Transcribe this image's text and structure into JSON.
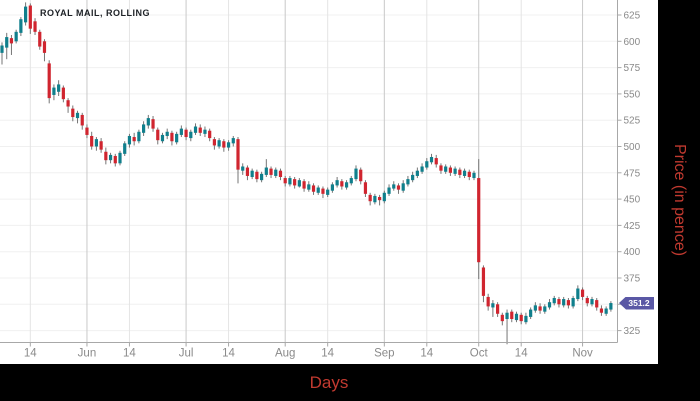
{
  "chart": {
    "title": "ROYAL MAIL, ROLLING",
    "x_axis_title": "Days",
    "y_axis_title": "Price (in pence)",
    "price_badge": "351.2"
  },
  "colors": {
    "up_candle": "#107f8c",
    "down_candle": "#d0252f",
    "wick": "#757575",
    "grid_horizontal": "#f0f0f0",
    "grid_month": "#c9c9c9",
    "grid_midmonth": "#e4e4e4",
    "axis_line": "#a8a8a8",
    "tick_label": "#8a8a8a",
    "axis_title_red": "#c23a30",
    "badge_bg": "#5a58a5",
    "badge_text": "#ffffff"
  },
  "chart_data": {
    "type": "candlestick",
    "title": "ROYAL MAIL, ROLLING",
    "xlabel": "Days",
    "ylabel": "Price (in pence)",
    "ylim": [
      310,
      645
    ],
    "y_ticks": [
      625,
      600,
      575,
      550,
      525,
      500,
      475,
      450,
      425,
      400,
      375,
      350,
      325
    ],
    "x_ticks": [
      {
        "label": "14",
        "i": 6,
        "major": false
      },
      {
        "label": "Jun",
        "i": 18,
        "major": true
      },
      {
        "label": "14",
        "i": 27,
        "major": false
      },
      {
        "label": "Jul",
        "i": 39,
        "major": true
      },
      {
        "label": "14",
        "i": 48,
        "major": false
      },
      {
        "label": "Aug",
        "i": 60,
        "major": true
      },
      {
        "label": "14",
        "i": 69,
        "major": false
      },
      {
        "label": "Sep",
        "i": 81,
        "major": true
      },
      {
        "label": "14",
        "i": 90,
        "major": false
      },
      {
        "label": "Oct",
        "i": 101,
        "major": true
      },
      {
        "label": "14",
        "i": 110,
        "major": false
      },
      {
        "label": "Nov",
        "i": 123,
        "major": true
      }
    ],
    "last_price": 351.2,
    "candles": [
      [
        589,
        599,
        578,
        596
      ],
      [
        594,
        608,
        583,
        604
      ],
      [
        603,
        606,
        587,
        598
      ],
      [
        600,
        611,
        598,
        609
      ],
      [
        608,
        623,
        605,
        621
      ],
      [
        618,
        637,
        615,
        633
      ],
      [
        634,
        636,
        607,
        612
      ],
      [
        619,
        622,
        606,
        609
      ],
      [
        609,
        611,
        592,
        595
      ],
      [
        600,
        602,
        581,
        589
      ],
      [
        579,
        582,
        541,
        546
      ],
      [
        549,
        559,
        544,
        556
      ],
      [
        552,
        563,
        548,
        559
      ],
      [
        556,
        558,
        542,
        545
      ],
      [
        544,
        546,
        532,
        538
      ],
      [
        536,
        539,
        524,
        528
      ],
      [
        527,
        534,
        522,
        532
      ],
      [
        530,
        532,
        516,
        520
      ],
      [
        518,
        521,
        508,
        511
      ],
      [
        510,
        514,
        497,
        500
      ],
      [
        500,
        509,
        496,
        507
      ],
      [
        505,
        508,
        494,
        497
      ],
      [
        495,
        499,
        483,
        487
      ],
      [
        487,
        494,
        484,
        492
      ],
      [
        491,
        493,
        481,
        484
      ],
      [
        484,
        496,
        482,
        494
      ],
      [
        493,
        505,
        491,
        503
      ],
      [
        502,
        512,
        499,
        510
      ],
      [
        509,
        513,
        501,
        505
      ],
      [
        505,
        516,
        503,
        514
      ],
      [
        513,
        524,
        510,
        521
      ],
      [
        520,
        530,
        517,
        527
      ],
      [
        526,
        529,
        514,
        517
      ],
      [
        516,
        518,
        502,
        506
      ],
      [
        505,
        513,
        503,
        511
      ],
      [
        510,
        517,
        507,
        514
      ],
      [
        513,
        515,
        501,
        505
      ],
      [
        504,
        514,
        502,
        512
      ],
      [
        511,
        520,
        509,
        517
      ],
      [
        516,
        518,
        506,
        509
      ],
      [
        508,
        516,
        505,
        514
      ],
      [
        513,
        522,
        511,
        519
      ],
      [
        518,
        521,
        510,
        513
      ],
      [
        512,
        519,
        509,
        516
      ],
      [
        515,
        517,
        505,
        508
      ],
      [
        507,
        509,
        497,
        501
      ],
      [
        500,
        508,
        498,
        506
      ],
      [
        505,
        507,
        495,
        499
      ],
      [
        499,
        506,
        496,
        504
      ],
      [
        503,
        510,
        500,
        508
      ],
      [
        507,
        509,
        465,
        478
      ],
      [
        477,
        484,
        473,
        481
      ],
      [
        480,
        482,
        468,
        472
      ],
      [
        471,
        479,
        469,
        477
      ],
      [
        476,
        478,
        466,
        469
      ],
      [
        468,
        476,
        466,
        474
      ],
      [
        473,
        488,
        471,
        480
      ],
      [
        479,
        481,
        470,
        473
      ],
      [
        472,
        480,
        470,
        478
      ],
      [
        477,
        479,
        468,
        471
      ],
      [
        470,
        472,
        462,
        465
      ],
      [
        464,
        472,
        462,
        470
      ],
      [
        469,
        471,
        460,
        463
      ],
      [
        462,
        470,
        461,
        468
      ],
      [
        467,
        469,
        457,
        460
      ],
      [
        459,
        467,
        457,
        464
      ],
      [
        463,
        465,
        454,
        457
      ],
      [
        456,
        463,
        454,
        461
      ],
      [
        460,
        462,
        451,
        455
      ],
      [
        454,
        461,
        452,
        459
      ],
      [
        458,
        466,
        456,
        464
      ],
      [
        463,
        471,
        461,
        468
      ],
      [
        467,
        469,
        459,
        462
      ],
      [
        461,
        468,
        459,
        466
      ],
      [
        465,
        472,
        463,
        470
      ],
      [
        469,
        482,
        467,
        479
      ],
      [
        478,
        480,
        464,
        467
      ],
      [
        466,
        468,
        452,
        455
      ],
      [
        454,
        456,
        444,
        448
      ],
      [
        447,
        455,
        445,
        453
      ],
      [
        452,
        454,
        444,
        449
      ],
      [
        448,
        458,
        446,
        456
      ],
      [
        455,
        464,
        453,
        461
      ],
      [
        460,
        467,
        458,
        464
      ],
      [
        463,
        465,
        455,
        459
      ],
      [
        458,
        468,
        456,
        465
      ],
      [
        464,
        472,
        462,
        469
      ],
      [
        468,
        476,
        466,
        473
      ],
      [
        472,
        480,
        470,
        477
      ],
      [
        476,
        484,
        474,
        481
      ],
      [
        480,
        489,
        478,
        486
      ],
      [
        485,
        493,
        483,
        490
      ],
      [
        489,
        492,
        480,
        483
      ],
      [
        482,
        484,
        474,
        477
      ],
      [
        476,
        483,
        474,
        481
      ],
      [
        480,
        482,
        472,
        475
      ],
      [
        474,
        481,
        472,
        479
      ],
      [
        478,
        480,
        470,
        473
      ],
      [
        472,
        479,
        470,
        477
      ],
      [
        476,
        478,
        468,
        471
      ],
      [
        470,
        477,
        468,
        475
      ],
      [
        470,
        488,
        374,
        390
      ],
      [
        385,
        387,
        352,
        358
      ],
      [
        357,
        360,
        344,
        348
      ],
      [
        347,
        354,
        338,
        351
      ],
      [
        350,
        352,
        338,
        341
      ],
      [
        340,
        342,
        330,
        334
      ],
      [
        336,
        345,
        312,
        342
      ],
      [
        343,
        345,
        333,
        336
      ],
      [
        335,
        343,
        333,
        341
      ],
      [
        340,
        342,
        331,
        334
      ],
      [
        333,
        342,
        331,
        339
      ],
      [
        338,
        347,
        336,
        345
      ],
      [
        344,
        352,
        342,
        349
      ],
      [
        348,
        351,
        341,
        344
      ],
      [
        343,
        350,
        341,
        348
      ],
      [
        347,
        355,
        345,
        352
      ],
      [
        351,
        358,
        349,
        356
      ],
      [
        355,
        357,
        347,
        350
      ],
      [
        349,
        357,
        347,
        355
      ],
      [
        354,
        356,
        346,
        349
      ],
      [
        348,
        358,
        346,
        356
      ],
      [
        355,
        368,
        353,
        365
      ],
      [
        364,
        366,
        354,
        357
      ],
      [
        356,
        358,
        348,
        351
      ],
      [
        350,
        357,
        348,
        355
      ],
      [
        354,
        356,
        344,
        347
      ],
      [
        346,
        349,
        339,
        342
      ],
      [
        341,
        348,
        339,
        346
      ],
      [
        345,
        353,
        343,
        351.2
      ]
    ]
  }
}
